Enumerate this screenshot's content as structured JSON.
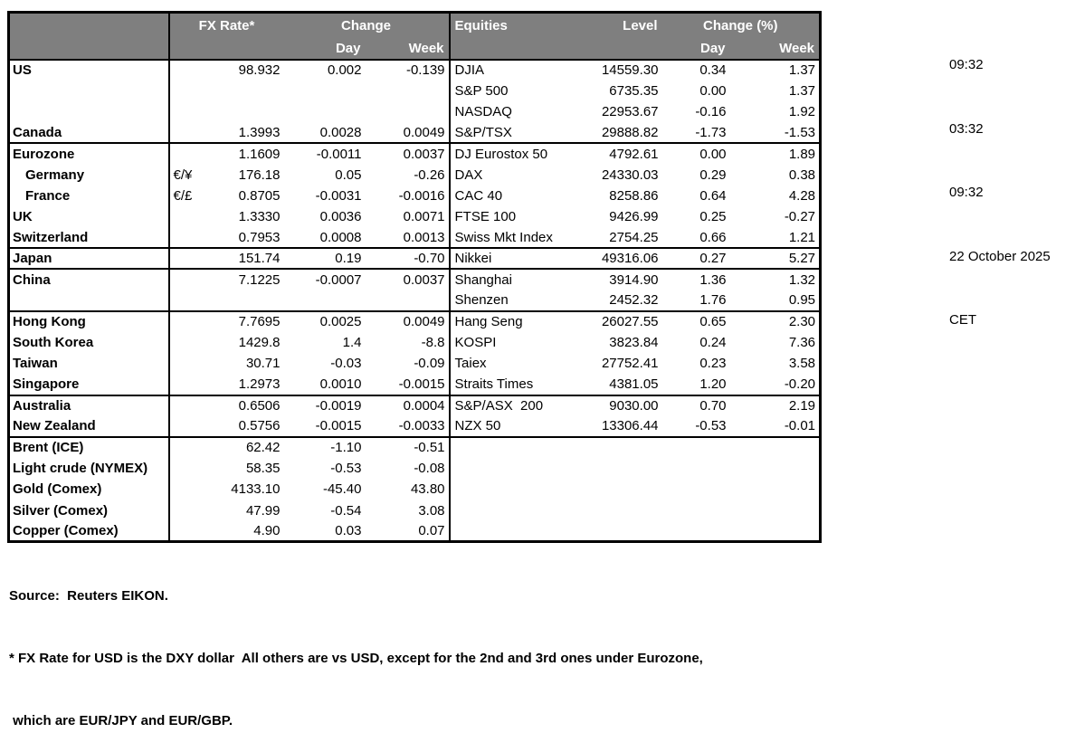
{
  "colors": {
    "header_bg": "#7f7f7f",
    "header_text": "#ffffff",
    "body_text": "#000000",
    "border": "#000000"
  },
  "header": {
    "fx_rate": "FX Rate*",
    "change": "Change",
    "day": "Day",
    "week": "Week",
    "equities": "Equities",
    "level": "Level",
    "change_pct": "Change (%)"
  },
  "sections": [
    {
      "rows": [
        {
          "fx": [
            "US",
            "",
            "98.932",
            "0.002",
            "-0.139"
          ],
          "eq": [
            "DJIA",
            "14559.30",
            "0.34",
            "1.37"
          ]
        },
        {
          "fx": [
            "",
            "",
            "",
            "",
            ""
          ],
          "eq": [
            "S&P 500",
            "6735.35",
            "0.00",
            "1.37"
          ]
        },
        {
          "fx": [
            "",
            "",
            "",
            "",
            ""
          ],
          "eq": [
            "NASDAQ",
            "22953.67",
            "-0.16",
            "1.92"
          ]
        },
        {
          "fx": [
            "Canada",
            "",
            "1.3993",
            "0.0028",
            "0.0049"
          ],
          "eq": [
            "S&P/TSX",
            "29888.82",
            "-1.73",
            "-1.53"
          ]
        }
      ]
    },
    {
      "rows": [
        {
          "fx": [
            "Eurozone",
            "",
            "1.1609",
            "-0.0011",
            "0.0037"
          ],
          "eq": [
            "DJ Eurostox 50",
            "4792.61",
            "0.00",
            "1.89"
          ]
        },
        {
          "fx": [
            "Germany",
            "€/¥",
            "176.18",
            "0.05",
            "-0.26"
          ],
          "eq": [
            "DAX",
            "24330.03",
            "0.29",
            "0.38"
          ],
          "indent": true
        },
        {
          "fx": [
            "France",
            "€/£",
            "0.8705",
            "-0.0031",
            "-0.0016"
          ],
          "eq": [
            "CAC 40",
            "8258.86",
            "0.64",
            "4.28"
          ],
          "indent": true
        },
        {
          "fx": [
            "UK",
            "",
            "1.3330",
            "0.0036",
            "0.0071"
          ],
          "eq": [
            "FTSE 100",
            "9426.99",
            "0.25",
            "-0.27"
          ]
        },
        {
          "fx": [
            "Switzerland",
            "",
            "0.7953",
            "0.0008",
            "0.0013"
          ],
          "eq": [
            "Swiss Mkt Index",
            "2754.25",
            "0.66",
            "1.21"
          ]
        }
      ]
    },
    {
      "rows": [
        {
          "fx": [
            "Japan",
            "",
            "151.74",
            "0.19",
            "-0.70"
          ],
          "eq": [
            "Nikkei",
            "49316.06",
            "0.27",
            "5.27"
          ]
        }
      ]
    },
    {
      "rows": [
        {
          "fx": [
            "China",
            "",
            "7.1225",
            "-0.0007",
            "0.0037"
          ],
          "eq": [
            "Shanghai",
            "3914.90",
            "1.36",
            "1.32"
          ]
        },
        {
          "fx": [
            "",
            "",
            "",
            "",
            ""
          ],
          "eq": [
            "Shenzen",
            "2452.32",
            "1.76",
            "0.95"
          ]
        }
      ]
    },
    {
      "rows": [
        {
          "fx": [
            "Hong Kong",
            "",
            "7.7695",
            "0.0025",
            "0.0049"
          ],
          "eq": [
            "Hang Seng",
            "26027.55",
            "0.65",
            "2.30"
          ]
        },
        {
          "fx": [
            "South Korea",
            "",
            "1429.8",
            "1.4",
            "-8.8"
          ],
          "eq": [
            "KOSPI",
            "3823.84",
            "0.24",
            "7.36"
          ]
        },
        {
          "fx": [
            "Taiwan",
            "",
            "30.71",
            "-0.03",
            "-0.09"
          ],
          "eq": [
            "Taiex",
            "27752.41",
            "0.23",
            "3.58"
          ]
        },
        {
          "fx": [
            "Singapore",
            "",
            "1.2973",
            "0.0010",
            "-0.0015"
          ],
          "eq": [
            "Straits Times",
            "4381.05",
            "1.20",
            "-0.20"
          ]
        }
      ]
    },
    {
      "rows": [
        {
          "fx": [
            "Australia",
            "",
            "0.6506",
            "-0.0019",
            "0.0004"
          ],
          "eq": [
            "S&P/ASX  200",
            "9030.00",
            "0.70",
            "2.19"
          ]
        },
        {
          "fx": [
            "New Zealand",
            "",
            "0.5756",
            "-0.0015",
            "-0.0033"
          ],
          "eq": [
            "NZX 50",
            "13306.44",
            "-0.53",
            "-0.01"
          ]
        }
      ]
    },
    {
      "rows": [
        {
          "fx": [
            "Brent (ICE)",
            "",
            "62.42",
            "-1.10",
            "-0.51"
          ],
          "eq": [
            "",
            "",
            "",
            ""
          ]
        },
        {
          "fx": [
            "Light crude (NYMEX)",
            "",
            "58.35",
            "-0.53",
            "-0.08"
          ],
          "eq": [
            "",
            "",
            "",
            ""
          ]
        },
        {
          "fx": [
            "Gold (Comex)",
            "",
            "4133.10",
            "-45.40",
            "43.80"
          ],
          "eq": [
            "",
            "",
            "",
            ""
          ]
        },
        {
          "fx": [
            "Silver (Comex)",
            "",
            "47.99",
            "-0.54",
            "3.08"
          ],
          "eq": [
            "",
            "",
            "",
            ""
          ]
        },
        {
          "fx": [
            "Copper (Comex)",
            "",
            "4.90",
            "0.03",
            "0.07"
          ],
          "eq": [
            "",
            "",
            "",
            ""
          ]
        }
      ]
    }
  ],
  "timestamps": {
    "line1": "09:32",
    "line2": "03:32",
    "line3": "09:32",
    "line4": "22 October 2025",
    "line5": "CET"
  },
  "footer": {
    "source": "Source:  Reuters EIKON.",
    "note_line1": "* FX Rate for USD is the DXY dollar  All others are vs USD, except for the 2nd and 3rd ones under Eurozone,",
    "note_line2": " which are EUR/JPY and EUR/GBP."
  }
}
